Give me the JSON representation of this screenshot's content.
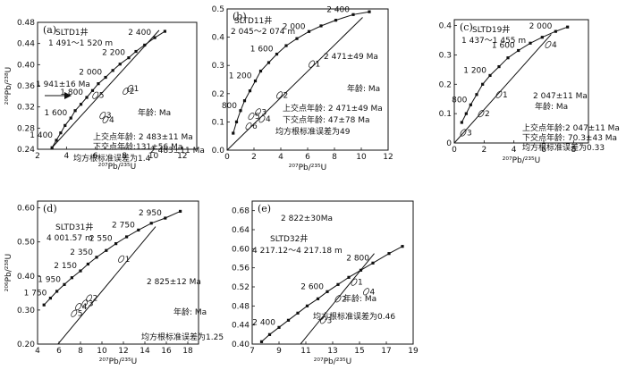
{
  "chart_data": [
    {
      "type": "line",
      "panel": "(a)",
      "well": "SLTD1井",
      "depth": "1 491～1 520 m",
      "xlabel": "²⁰⁷Pb/²³⁵U",
      "ylabel": "²⁰⁶Pb/²³⁸U",
      "xlim": [
        2,
        13
      ],
      "ylim": [
        0.24,
        0.48
      ],
      "xticks": [
        "2",
        "4",
        "6",
        "8",
        "10",
        "12"
      ],
      "yticks": [
        "0.24",
        "0.28",
        "0.32",
        "0.36",
        "0.40",
        "0.44",
        "0.48"
      ],
      "concordia_labels": [
        "1 400",
        "1 600",
        "1 800",
        "2 000",
        "2 200",
        "2 400"
      ],
      "concordia_points": [
        [
          3.0,
          0.243
        ],
        [
          3.3,
          0.257
        ],
        [
          3.6,
          0.271
        ],
        [
          3.9,
          0.285
        ],
        [
          4.3,
          0.299
        ],
        [
          4.6,
          0.313
        ],
        [
          5.0,
          0.325
        ],
        [
          5.4,
          0.338
        ],
        [
          5.8,
          0.351
        ],
        [
          6.2,
          0.364
        ],
        [
          6.7,
          0.376
        ],
        [
          7.2,
          0.389
        ],
        [
          7.7,
          0.401
        ],
        [
          8.3,
          0.413
        ],
        [
          8.8,
          0.425
        ],
        [
          9.4,
          0.437
        ],
        [
          10.1,
          0.451
        ],
        [
          10.8,
          0.463
        ]
      ],
      "discordia": [
        [
          2.9,
          0.24
        ],
        [
          10.4,
          0.465
        ]
      ],
      "samples": [
        {
          "label": "1",
          "x": 8.4,
          "y": 0.355
        },
        {
          "label": "2",
          "x": 8.1,
          "y": 0.35
        },
        {
          "label": "3",
          "x": 6.5,
          "y": 0.304
        },
        {
          "label": "4",
          "x": 6.7,
          "y": 0.296
        },
        {
          "label": "5",
          "x": 6.0,
          "y": 0.342
        }
      ],
      "annotations": {
        "upper_age": "2 483±11 Ma",
        "marked_age": "1 941±16 Ma",
        "age_unit": "年龄: Ma",
        "upper_intercept": "上交点年龄: 2 483±11 Ma",
        "lower_intercept": "下交点年龄:131±56 Ma",
        "mswd": "均方根标准误差为1.4"
      }
    },
    {
      "type": "line",
      "panel": "(b)",
      "well": "SLTD11井",
      "depth": "2 045～2 074 m",
      "xlabel": "²⁰⁷Pb/²³⁵U",
      "ylim": [
        0,
        0.5
      ],
      "xlim": [
        0,
        12
      ],
      "xticks": [
        "0",
        "2",
        "4",
        "6",
        "8",
        "10",
        "12"
      ],
      "yticks": [
        "0.0",
        "0.1",
        "0.2",
        "0.3",
        "0.4",
        "0.5"
      ],
      "concordia_labels": [
        "800",
        "1 200",
        "1 600",
        "2 000",
        "2 400"
      ],
      "concordia_points": [
        [
          0.45,
          0.06
        ],
        [
          0.7,
          0.1
        ],
        [
          1.0,
          0.14
        ],
        [
          1.3,
          0.175
        ],
        [
          1.7,
          0.21
        ],
        [
          2.1,
          0.245
        ],
        [
          2.5,
          0.28
        ],
        [
          3.1,
          0.31
        ],
        [
          3.7,
          0.34
        ],
        [
          4.4,
          0.37
        ],
        [
          5.2,
          0.395
        ],
        [
          6.1,
          0.42
        ],
        [
          7.0,
          0.44
        ],
        [
          8.1,
          0.46
        ],
        [
          9.4,
          0.48
        ],
        [
          10.6,
          0.49
        ]
      ],
      "discordia": [
        [
          0.0,
          0.0
        ],
        [
          10.1,
          0.47
        ]
      ],
      "samples": [
        {
          "label": "1",
          "x": 6.3,
          "y": 0.305
        },
        {
          "label": "2",
          "x": 3.9,
          "y": 0.195
        },
        {
          "label": "3",
          "x": 2.3,
          "y": 0.135
        },
        {
          "label": "4",
          "x": 2.6,
          "y": 0.11
        },
        {
          "label": "5",
          "x": 1.8,
          "y": 0.12
        },
        {
          "label": "6",
          "x": 1.6,
          "y": 0.085
        }
      ],
      "annotations": {
        "upper_age": "2 471±49 Ma",
        "age_unit": "年龄: Ma",
        "upper_intercept": "上交点年龄: 2 471±49 Ma",
        "lower_intercept": "下交点年龄: 47±78 Ma",
        "mswd": "均方根标准误差为49"
      }
    },
    {
      "type": "line",
      "panel": "(c)",
      "well": "SLTD19井",
      "depth": "1 437～1 455 m",
      "xlabel": "²⁰⁷Pb/²³⁵U",
      "xlim": [
        0,
        9
      ],
      "ylim": [
        0,
        0.42
      ],
      "xticks": [
        "0",
        "2",
        "4",
        "6",
        "8"
      ],
      "yticks": [
        "0",
        "0.1",
        "0.2",
        "0.3",
        "0.4"
      ],
      "concordia_labels": [
        "800",
        "1 200",
        "1 600",
        "2 000"
      ],
      "concordia_points": [
        [
          0.5,
          0.07
        ],
        [
          0.8,
          0.1
        ],
        [
          1.1,
          0.13
        ],
        [
          1.5,
          0.165
        ],
        [
          1.9,
          0.2
        ],
        [
          2.4,
          0.23
        ],
        [
          3.0,
          0.26
        ],
        [
          3.6,
          0.29
        ],
        [
          4.3,
          0.315
        ],
        [
          5.1,
          0.34
        ],
        [
          5.9,
          0.36
        ],
        [
          6.8,
          0.38
        ],
        [
          7.6,
          0.395
        ]
      ],
      "discordia": [
        [
          0.0,
          0.0
        ],
        [
          6.5,
          0.37
        ]
      ],
      "samples": [
        {
          "label": "1",
          "x": 3.0,
          "y": 0.165
        },
        {
          "label": "2",
          "x": 1.8,
          "y": 0.1
        },
        {
          "label": "3",
          "x": 0.6,
          "y": 0.035
        },
        {
          "label": "4",
          "x": 6.3,
          "y": 0.335
        }
      ],
      "annotations": {
        "upper_age": "2 047±11 Ma",
        "age_unit": "年龄: Ma",
        "upper_intercept": "上交点年龄:2 047±11 Ma",
        "lower_intercept": "下交点年龄: 70.3±43 Ma",
        "mswd": "均方根标准误差为0.33"
      }
    },
    {
      "type": "line",
      "panel": "(d)",
      "well": "SLTD31井",
      "depth": "4 001.57 m",
      "xlabel": "²⁰⁷Pb/²³⁵U",
      "ylabel": "²⁰⁶Pb/²³⁸U",
      "xlim": [
        4,
        19
      ],
      "ylim": [
        0.2,
        0.62
      ],
      "xticks": [
        "4",
        "6",
        "8",
        "10",
        "12",
        "14",
        "16",
        "18"
      ],
      "yticks": [
        "0.20",
        "0.30",
        "0.40",
        "0.50",
        "0.60"
      ],
      "concordia_labels": [
        "1 750",
        "1 950",
        "2 150",
        "2 350",
        "2 550",
        "2 750",
        "2 950"
      ],
      "concordia_points": [
        [
          4.6,
          0.315
        ],
        [
          5.2,
          0.335
        ],
        [
          5.8,
          0.355
        ],
        [
          6.5,
          0.375
        ],
        [
          7.2,
          0.395
        ],
        [
          8.0,
          0.415
        ],
        [
          8.7,
          0.435
        ],
        [
          9.5,
          0.455
        ],
        [
          10.4,
          0.475
        ],
        [
          11.3,
          0.495
        ],
        [
          12.3,
          0.515
        ],
        [
          13.4,
          0.535
        ],
        [
          14.6,
          0.555
        ],
        [
          15.9,
          0.57
        ],
        [
          17.3,
          0.59
        ]
      ],
      "discordia": [
        [
          5.9,
          0.2
        ],
        [
          15.0,
          0.545
        ]
      ],
      "samples": [
        {
          "label": "1",
          "x": 11.8,
          "y": 0.45
        },
        {
          "label": "2",
          "x": 8.8,
          "y": 0.335
        },
        {
          "label": "3",
          "x": 8.4,
          "y": 0.32
        },
        {
          "label": "4",
          "x": 7.8,
          "y": 0.31
        },
        {
          "label": "5",
          "x": 7.4,
          "y": 0.29
        }
      ],
      "annotations": {
        "upper_age": "2 825±12 Ma",
        "age_unit": "年龄: Ma",
        "mswd": "均方根标准误差为1.25"
      }
    },
    {
      "type": "line",
      "panel": "(e)",
      "well": "SLTD32井",
      "depth": "4 217.12～4 217.18 m",
      "xlabel": "²⁰⁷Pb/²³⁵U",
      "xlim": [
        7,
        19
      ],
      "ylim": [
        0.4,
        0.7
      ],
      "xticks": [
        "7",
        "9",
        "11",
        "13",
        "15",
        "17",
        "19"
      ],
      "yticks": [
        "0.40",
        "0.44",
        "0.48",
        "0.52",
        "0.56",
        "0.60",
        "0.64",
        "0.68"
      ],
      "concordia_labels": [
        "2 400",
        "2 600",
        "2 800"
      ],
      "concordia_points": [
        [
          7.7,
          0.405
        ],
        [
          8.3,
          0.42
        ],
        [
          9.0,
          0.435
        ],
        [
          9.7,
          0.45
        ],
        [
          10.4,
          0.465
        ],
        [
          11.1,
          0.48
        ],
        [
          11.9,
          0.495
        ],
        [
          12.6,
          0.51
        ],
        [
          13.4,
          0.525
        ],
        [
          14.2,
          0.54
        ],
        [
          15.1,
          0.555
        ],
        [
          16.0,
          0.57
        ],
        [
          17.2,
          0.59
        ],
        [
          18.2,
          0.605
        ]
      ],
      "discordia": [
        [
          10.6,
          0.4
        ],
        [
          16.1,
          0.59
        ]
      ],
      "samples": [
        {
          "label": "1",
          "x": 14.6,
          "y": 0.53
        },
        {
          "label": "2",
          "x": 13.4,
          "y": 0.495
        },
        {
          "label": "3",
          "x": 12.3,
          "y": 0.45
        },
        {
          "label": "4",
          "x": 15.5,
          "y": 0.51
        }
      ],
      "annotations": {
        "upper_age": "2 822±30Ma",
        "age_unit": "年龄: Ma",
        "mswd": "均方根标准误差为0.46"
      }
    }
  ]
}
